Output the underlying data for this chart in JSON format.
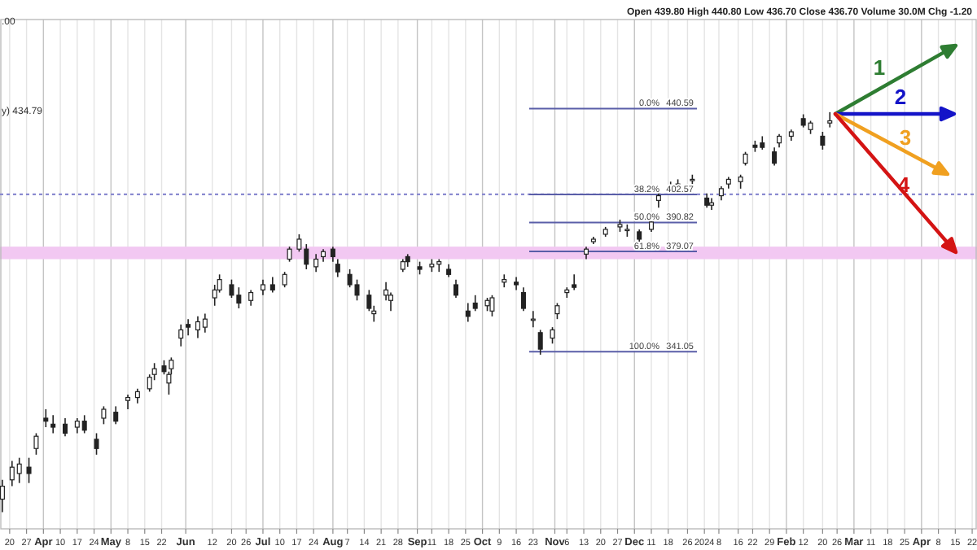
{
  "chart_data": {
    "type": "candlestick",
    "subtitle": "Open 439.80 High 440.80 Low 436.70 Close 436.70 Volume 30.0M Chg -1.20",
    "annotations": [
      ".00",
      "y) 434.79",
      "0.0%",
      "38.2%",
      "50.0%",
      "61.8%",
      "100.0%",
      "1",
      "2",
      "3",
      "4"
    ],
    "log": "y",
    "grid": "x",
    "xlim": [
      "2023-03-16",
      "2024-04-24"
    ],
    "ylim": [
      283,
      484
    ],
    "yticks": [
      440.59,
      402.57,
      390.82,
      379.07,
      341.05
    ],
    "xticks": [
      {
        "value": "2023-03-20",
        "label": "20"
      },
      {
        "value": "2023-03-27",
        "label": "27"
      },
      {
        "value": "2023-04-03",
        "label": "Apr"
      },
      {
        "value": "2023-04-10",
        "label": "10"
      },
      {
        "value": "2023-04-17",
        "label": "17"
      },
      {
        "value": "2023-04-24",
        "label": "24"
      },
      {
        "value": "2023-05-01",
        "label": "May"
      },
      {
        "value": "2023-05-08",
        "label": "8"
      },
      {
        "value": "2023-05-15",
        "label": "15"
      },
      {
        "value": "2023-05-22",
        "label": "22"
      },
      {
        "value": "2023-06-01",
        "label": "Jun"
      },
      {
        "value": "2023-06-12",
        "label": "12"
      },
      {
        "value": "2023-06-20",
        "label": "20"
      },
      {
        "value": "2023-06-26",
        "label": "26"
      },
      {
        "value": "2023-07-03",
        "label": "Jul"
      },
      {
        "value": "2023-07-10",
        "label": "10"
      },
      {
        "value": "2023-07-17",
        "label": "17"
      },
      {
        "value": "2023-07-24",
        "label": "24"
      },
      {
        "value": "2023-08-01",
        "label": "Aug"
      },
      {
        "value": "2023-08-07",
        "label": "7"
      },
      {
        "value": "2023-08-14",
        "label": "14"
      },
      {
        "value": "2023-08-21",
        "label": "21"
      },
      {
        "value": "2023-08-28",
        "label": "28"
      },
      {
        "value": "2023-09-05",
        "label": "Sep"
      },
      {
        "value": "2023-09-11",
        "label": "11"
      },
      {
        "value": "2023-09-18",
        "label": "18"
      },
      {
        "value": "2023-09-25",
        "label": "25"
      },
      {
        "value": "2023-10-02",
        "label": "Oct"
      },
      {
        "value": "2023-10-09",
        "label": "9"
      },
      {
        "value": "2023-10-16",
        "label": "16"
      },
      {
        "value": "2023-10-23",
        "label": "23"
      },
      {
        "value": "2023-11-01",
        "label": "Nov"
      },
      {
        "value": "2023-11-06",
        "label": "6"
      },
      {
        "value": "2023-11-13",
        "label": "13"
      },
      {
        "value": "2023-11-20",
        "label": "20"
      },
      {
        "value": "2023-11-27",
        "label": "27"
      },
      {
        "value": "2023-12-04",
        "label": "Dec"
      },
      {
        "value": "2023-12-11",
        "label": "11"
      },
      {
        "value": "2023-12-18",
        "label": "18"
      },
      {
        "value": "2023-12-26",
        "label": "26"
      },
      {
        "value": "2024-01-02",
        "label": "2024"
      },
      {
        "value": "2024-01-08",
        "label": "8"
      },
      {
        "value": "2024-01-16",
        "label": "16"
      },
      {
        "value": "2024-01-22",
        "label": "22"
      },
      {
        "value": "2024-01-29",
        "label": "29"
      },
      {
        "value": "2024-02-05",
        "label": "Feb"
      },
      {
        "value": "2024-02-12",
        "label": "12"
      },
      {
        "value": "2024-02-20",
        "label": "20"
      },
      {
        "value": "2024-02-26",
        "label": "26"
      },
      {
        "value": "2024-03-04",
        "label": "Mar"
      },
      {
        "value": "2024-03-11",
        "label": "11"
      },
      {
        "value": "2024-03-18",
        "label": "18"
      },
      {
        "value": "2024-03-25",
        "label": "25"
      },
      {
        "value": "2024-04-01",
        "label": "Apr"
      },
      {
        "value": "2024-04-08",
        "label": "8"
      },
      {
        "value": "2024-04-15",
        "label": "15"
      },
      {
        "value": "2024-04-22",
        "label": "22"
      }
    ],
    "x": [
      "2023-03-17",
      "2023-03-21",
      "2023-03-24",
      "2023-03-28",
      "2023-03-31",
      "2023-04-04",
      "2023-04-07",
      "2023-04-12",
      "2023-04-17",
      "2023-04-20",
      "2023-04-25",
      "2023-04-28",
      "2023-05-03",
      "2023-05-08",
      "2023-05-12",
      "2023-05-17",
      "2023-05-19",
      "2023-05-23",
      "2023-05-25",
      "2023-05-26",
      "2023-05-30",
      "2023-06-02",
      "2023-06-06",
      "2023-06-09",
      "2023-06-13",
      "2023-06-15",
      "2023-06-20",
      "2023-06-23",
      "2023-06-28",
      "2023-07-03",
      "2023-07-07",
      "2023-07-12",
      "2023-07-14",
      "2023-07-18",
      "2023-07-21",
      "2023-07-25",
      "2023-07-28",
      "2023-08-01",
      "2023-08-03",
      "2023-08-08",
      "2023-08-11",
      "2023-08-16",
      "2023-08-18",
      "2023-08-23",
      "2023-08-25",
      "2023-08-30",
      "2023-09-01",
      "2023-09-06",
      "2023-09-11",
      "2023-09-14",
      "2023-09-18",
      "2023-09-21",
      "2023-09-26",
      "2023-09-29",
      "2023-10-04",
      "2023-10-06",
      "2023-10-11",
      "2023-10-16",
      "2023-10-19",
      "2023-10-23",
      "2023-10-26",
      "2023-10-31",
      "2023-11-02",
      "2023-11-06",
      "2023-11-09",
      "2023-11-14",
      "2023-11-17",
      "2023-11-22",
      "2023-11-28",
      "2023-12-01",
      "2023-12-06",
      "2023-12-11",
      "2023-12-14",
      "2023-12-19",
      "2023-12-22",
      "2023-12-28",
      "2024-01-03",
      "2024-01-05",
      "2024-01-09",
      "2024-01-12",
      "2024-01-17",
      "2024-01-19",
      "2024-01-23",
      "2024-01-26",
      "2024-01-31",
      "2024-02-02",
      "2024-02-07",
      "2024-02-12",
      "2024-02-15",
      "2024-02-20",
      "2024-02-23"
    ],
    "ohlc": [
      [
        292,
        298,
        288,
        296
      ],
      [
        298,
        304,
        296,
        302
      ],
      [
        300,
        305,
        297,
        303
      ],
      [
        302,
        305,
        297,
        300
      ],
      [
        308,
        313,
        306,
        312
      ],
      [
        318,
        321,
        315,
        317
      ],
      [
        316,
        319,
        313,
        315
      ],
      [
        316,
        318,
        312,
        313
      ],
      [
        315,
        318,
        313,
        317
      ],
      [
        317,
        319,
        313,
        314
      ],
      [
        311,
        313,
        306,
        308
      ],
      [
        318,
        322,
        316,
        321
      ],
      [
        320,
        322,
        316,
        317
      ],
      [
        324,
        326,
        321,
        325
      ],
      [
        325,
        328,
        323,
        327
      ],
      [
        328,
        333,
        327,
        332
      ],
      [
        333,
        337,
        331,
        335
      ],
      [
        336,
        338,
        333,
        334
      ],
      [
        330,
        334,
        326,
        333
      ],
      [
        335,
        339,
        333,
        338
      ],
      [
        346,
        351,
        343,
        349
      ],
      [
        351,
        353,
        347,
        350
      ],
      [
        349,
        354,
        346,
        352
      ],
      [
        350,
        355,
        348,
        353
      ],
      [
        361,
        366,
        358,
        364
      ],
      [
        364,
        370,
        363,
        368
      ],
      [
        366,
        368,
        361,
        362
      ],
      [
        362,
        365,
        357,
        359
      ],
      [
        360,
        364,
        358,
        363
      ],
      [
        364,
        368,
        362,
        366
      ],
      [
        366,
        369,
        363,
        364
      ],
      [
        366,
        371,
        365,
        370
      ],
      [
        376,
        381,
        375,
        380
      ],
      [
        380,
        386,
        379,
        384
      ],
      [
        380,
        382,
        372,
        374
      ],
      [
        373,
        378,
        371,
        376
      ],
      [
        377,
        380,
        375,
        379
      ],
      [
        380,
        381,
        375,
        377
      ],
      [
        374,
        376,
        369,
        371
      ],
      [
        370,
        372,
        365,
        366
      ],
      [
        366,
        368,
        360,
        362
      ],
      [
        362,
        364,
        356,
        357
      ],
      [
        355,
        358,
        352,
        356
      ],
      [
        362,
        367,
        360,
        364
      ],
      [
        360,
        363,
        356,
        362
      ],
      [
        372,
        376,
        371,
        375
      ],
      [
        377,
        378,
        373,
        375
      ],
      [
        373,
        375,
        370,
        372
      ],
      [
        373,
        376,
        371,
        374
      ],
      [
        374,
        376,
        371,
        375
      ],
      [
        372,
        374,
        369,
        370
      ],
      [
        366,
        368,
        361,
        362
      ],
      [
        356,
        359,
        352,
        354
      ],
      [
        359,
        362,
        356,
        357
      ],
      [
        358,
        361,
        356,
        360
      ],
      [
        356,
        362,
        354,
        361
      ],
      [
        367,
        370,
        365,
        368
      ],
      [
        367,
        369,
        364,
        366
      ],
      [
        363,
        365,
        356,
        357
      ],
      [
        353,
        356,
        350,
        353
      ],
      [
        348,
        349,
        340,
        342
      ],
      [
        346,
        350,
        344,
        349
      ],
      [
        355,
        359,
        353,
        358
      ],
      [
        363,
        365,
        361,
        364
      ],
      [
        366,
        370,
        364,
        365
      ],
      [
        378,
        381,
        376,
        380
      ],
      [
        383,
        385,
        382,
        384
      ],
      [
        386,
        389,
        385,
        388
      ],
      [
        389,
        392,
        387,
        390
      ],
      [
        388,
        390,
        385,
        388
      ],
      [
        387,
        388,
        383,
        384
      ],
      [
        388,
        392,
        387,
        391
      ],
      [
        400,
        404,
        397,
        402
      ],
      [
        405,
        408,
        403,
        406
      ],
      [
        405,
        409,
        403,
        407
      ],
      [
        409,
        411,
        407,
        409
      ],
      [
        401,
        403,
        397,
        398
      ],
      [
        398,
        401,
        396,
        399
      ],
      [
        402,
        406,
        400,
        405
      ],
      [
        407,
        410,
        405,
        409
      ],
      [
        408,
        411,
        405,
        410
      ],
      [
        416,
        421,
        415,
        420
      ],
      [
        424,
        426,
        421,
        423
      ],
      [
        425,
        428,
        422,
        423
      ],
      [
        421,
        423,
        415,
        416
      ],
      [
        425,
        429,
        423,
        428
      ],
      [
        428,
        431,
        426,
        430
      ],
      [
        436,
        438,
        432,
        433
      ],
      [
        431,
        435,
        429,
        434
      ],
      [
        428,
        430,
        422,
        424
      ],
      [
        434,
        439,
        432,
        435
      ]
    ],
    "ref_lines": [
      {
        "axis": "y",
        "value": 402.57,
        "color": "#8a8ad0",
        "line_style": "dotted"
      },
      {
        "axis": "y",
        "value": 440.59,
        "color": "#5a5ea8",
        "line_style": "solid"
      },
      {
        "axis": "y",
        "value": 402.57,
        "color": "#5a5ea8",
        "line_style": "solid"
      },
      {
        "axis": "y",
        "value": 390.82,
        "color": "#5a5ea8",
        "line_style": "solid"
      },
      {
        "axis": "y",
        "value": 379.07,
        "color": "#5a5ea8",
        "line_style": "solid"
      },
      {
        "axis": "y",
        "value": 341.05,
        "color": "#5a5ea8",
        "line_style": "solid"
      }
    ],
    "bands": [
      {
        "axis": "y",
        "from": 376,
        "to": 381,
        "color": "#f2c8f2"
      }
    ]
  }
}
